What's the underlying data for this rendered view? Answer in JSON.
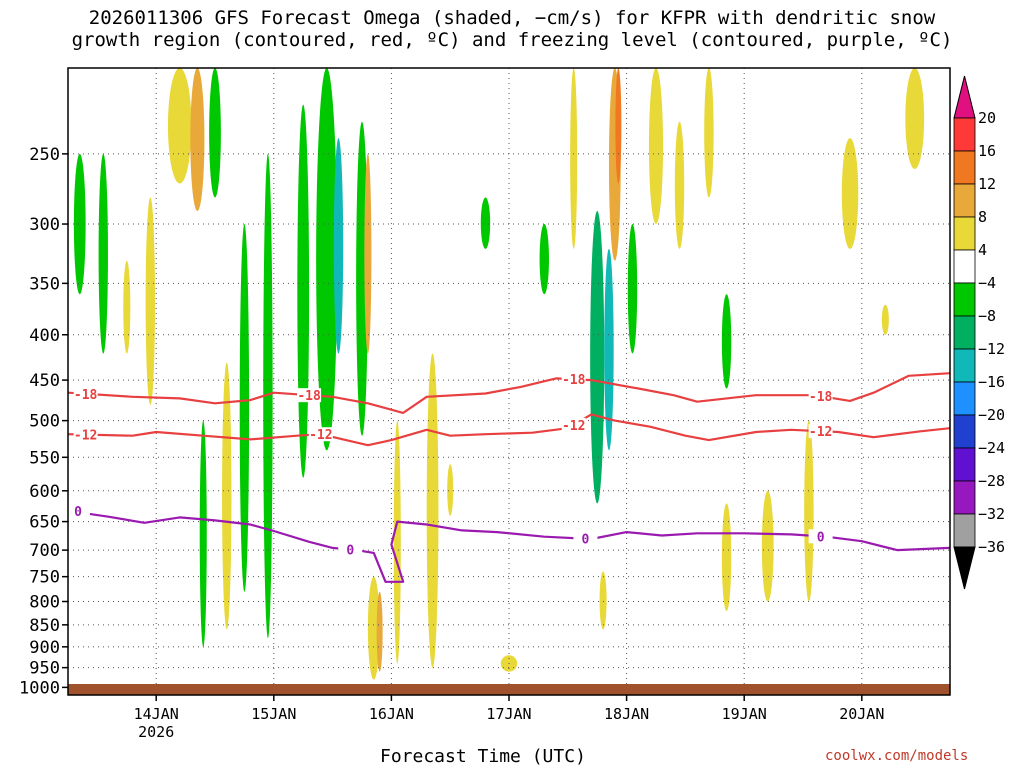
{
  "chart_data": {
    "type": "heatmap",
    "title_line1": "2026011306 GFS Forecast Omega (shaded, −cm/s) for KFPR with dendritic snow",
    "title_line2": "growth region (contoured, red, ºC) and freezing level (contoured, purple, ºC)",
    "xlabel": "Forecast Time (UTC)",
    "credit": "coolwx.com/models",
    "y_ticks": [
      "250",
      "300",
      "350",
      "400",
      "450",
      "500",
      "550",
      "600",
      "650",
      "700",
      "750",
      "800",
      "850",
      "900",
      "950",
      "1000"
    ],
    "y_tick_values": [
      250,
      300,
      350,
      400,
      450,
      500,
      550,
      600,
      650,
      700,
      750,
      800,
      850,
      900,
      950,
      1000
    ],
    "x_ticks": [
      "14JAN",
      "15JAN",
      "16JAN",
      "17JAN",
      "18JAN",
      "19JAN",
      "20JAN"
    ],
    "x_tick_day": [
      14,
      15,
      16,
      17,
      18,
      19,
      20
    ],
    "x_sublabel": "2026",
    "x_range_day": [
      13.25,
      20.75
    ],
    "y_range_hpa": [
      200,
      1020
    ],
    "colorbar": {
      "labels": [
        "20",
        "16",
        "12",
        "8",
        "4",
        "−4",
        "−8",
        "−12",
        "−16",
        "−20",
        "−24",
        "−28",
        "−32",
        "−36"
      ],
      "colors": [
        "#ff3838",
        "#f07820",
        "#e8a93a",
        "#e8d838",
        "#ffffff",
        "#00c800",
        "#00b060",
        "#10b8b8",
        "#1e90ff",
        "#2040d0",
        "#6010d0",
        "#9818c0",
        "#a0a0a0"
      ],
      "top_arrow_color": "#e01080",
      "bottom_arrow_color": "#000000"
    },
    "contours": {
      "dgz_minus18": {
        "label": "-18",
        "color": "#e84040",
        "points": [
          [
            13.25,
            465
          ],
          [
            13.8,
            470
          ],
          [
            14.2,
            472
          ],
          [
            14.5,
            478
          ],
          [
            14.8,
            474
          ],
          [
            15.0,
            465
          ],
          [
            15.5,
            470
          ],
          [
            15.8,
            478
          ],
          [
            16.1,
            490
          ],
          [
            16.3,
            470
          ],
          [
            16.8,
            466
          ],
          [
            17.1,
            458
          ],
          [
            17.4,
            448
          ],
          [
            17.7,
            450
          ],
          [
            18.1,
            460
          ],
          [
            18.4,
            468
          ],
          [
            18.6,
            476
          ],
          [
            19.1,
            468
          ],
          [
            19.6,
            468
          ],
          [
            19.9,
            475
          ],
          [
            20.1,
            465
          ],
          [
            20.4,
            445
          ],
          [
            20.75,
            442
          ]
        ],
        "label_days": [
          13.4,
          15.3,
          17.55,
          19.65
        ]
      },
      "dgz_minus12": {
        "label": "-12",
        "color": "#e84040",
        "points": [
          [
            13.25,
            518
          ],
          [
            13.8,
            520
          ],
          [
            14.0,
            515
          ],
          [
            14.4,
            520
          ],
          [
            14.8,
            525
          ],
          [
            15.2,
            520
          ],
          [
            15.4,
            518
          ],
          [
            15.8,
            533
          ],
          [
            16.0,
            526
          ],
          [
            16.3,
            512
          ],
          [
            16.5,
            520
          ],
          [
            16.8,
            518
          ],
          [
            17.2,
            516
          ],
          [
            17.5,
            510
          ],
          [
            17.7,
            492
          ],
          [
            17.9,
            500
          ],
          [
            18.2,
            508
          ],
          [
            18.5,
            520
          ],
          [
            18.7,
            526
          ],
          [
            19.1,
            515
          ],
          [
            19.4,
            512
          ],
          [
            19.8,
            515
          ],
          [
            20.1,
            522
          ],
          [
            20.5,
            514
          ],
          [
            20.75,
            510
          ]
        ],
        "label_days": [
          13.4,
          15.4,
          17.55,
          19.65
        ]
      },
      "freezing_0": {
        "label": "0",
        "color": "#9a1ab0",
        "points": [
          [
            13.25,
            632
          ],
          [
            13.6,
            642
          ],
          [
            13.9,
            652
          ],
          [
            14.2,
            643
          ],
          [
            14.5,
            648
          ],
          [
            14.8,
            655
          ],
          [
            15.0,
            666
          ],
          [
            15.3,
            685
          ],
          [
            15.5,
            696
          ],
          [
            15.7,
            700
          ],
          [
            15.85,
            705
          ],
          [
            15.95,
            760
          ],
          [
            16.1,
            760
          ],
          [
            16.0,
            690
          ],
          [
            16.05,
            650
          ],
          [
            16.3,
            655
          ],
          [
            16.6,
            665
          ],
          [
            16.9,
            668
          ],
          [
            17.3,
            676
          ],
          [
            17.7,
            680
          ],
          [
            18.0,
            668
          ],
          [
            18.3,
            674
          ],
          [
            18.6,
            670
          ],
          [
            19.0,
            670
          ],
          [
            19.4,
            672
          ],
          [
            19.7,
            676
          ],
          [
            20.0,
            684
          ],
          [
            20.3,
            700
          ],
          [
            20.75,
            696
          ]
        ],
        "label_days": [
          13.25,
          15.65,
          17.65,
          19.65
        ]
      }
    },
    "omega_blobs": [
      {
        "day": 13.35,
        "p_top": 250,
        "p_bot": 360,
        "w": 0.05,
        "v": -6
      },
      {
        "day": 13.55,
        "p_top": 250,
        "p_bot": 420,
        "w": 0.04,
        "v": -5
      },
      {
        "day": 13.75,
        "p_top": 330,
        "p_bot": 420,
        "w": 0.03,
        "v": 6
      },
      {
        "day": 13.95,
        "p_top": 280,
        "p_bot": 480,
        "w": 0.04,
        "v": 6
      },
      {
        "day": 14.2,
        "p_top": 200,
        "p_bot": 270,
        "w": 0.1,
        "v": 6
      },
      {
        "day": 14.35,
        "p_top": 200,
        "p_bot": 290,
        "w": 0.06,
        "v": 10
      },
      {
        "day": 14.5,
        "p_top": 200,
        "p_bot": 280,
        "w": 0.05,
        "v": -5
      },
      {
        "day": 14.4,
        "p_top": 500,
        "p_bot": 900,
        "w": 0.03,
        "v": -6
      },
      {
        "day": 14.6,
        "p_top": 430,
        "p_bot": 860,
        "w": 0.04,
        "v": 5
      },
      {
        "day": 14.75,
        "p_top": 300,
        "p_bot": 780,
        "w": 0.04,
        "v": -6
      },
      {
        "day": 14.95,
        "p_top": 250,
        "p_bot": 880,
        "w": 0.04,
        "v": -5
      },
      {
        "day": 15.25,
        "p_top": 220,
        "p_bot": 580,
        "w": 0.05,
        "v": -6
      },
      {
        "day": 15.45,
        "p_top": 200,
        "p_bot": 540,
        "w": 0.09,
        "v": -7
      },
      {
        "day": 15.55,
        "p_top": 240,
        "p_bot": 420,
        "w": 0.04,
        "v": -13
      },
      {
        "day": 15.75,
        "p_top": 230,
        "p_bot": 520,
        "w": 0.05,
        "v": -7
      },
      {
        "day": 15.8,
        "p_top": 250,
        "p_bot": 420,
        "w": 0.03,
        "v": 10
      },
      {
        "day": 15.85,
        "p_top": 750,
        "p_bot": 980,
        "w": 0.05,
        "v": 5
      },
      {
        "day": 15.9,
        "p_top": 780,
        "p_bot": 960,
        "w": 0.02,
        "v": 10
      },
      {
        "day": 16.05,
        "p_top": 500,
        "p_bot": 940,
        "w": 0.03,
        "v": 5
      },
      {
        "day": 16.35,
        "p_top": 420,
        "p_bot": 950,
        "w": 0.05,
        "v": 5
      },
      {
        "day": 16.5,
        "p_top": 560,
        "p_bot": 640,
        "w": 0.02,
        "v": 5
      },
      {
        "day": 16.8,
        "p_top": 280,
        "p_bot": 320,
        "w": 0.04,
        "v": -5
      },
      {
        "day": 17.0,
        "p_top": 920,
        "p_bot": 960,
        "w": 0.07,
        "v": 5
      },
      {
        "day": 17.3,
        "p_top": 300,
        "p_bot": 360,
        "w": 0.04,
        "v": -5
      },
      {
        "day": 17.55,
        "p_top": 200,
        "p_bot": 320,
        "w": 0.03,
        "v": 5
      },
      {
        "day": 17.75,
        "p_top": 290,
        "p_bot": 620,
        "w": 0.06,
        "v": -9
      },
      {
        "day": 17.85,
        "p_top": 320,
        "p_bot": 540,
        "w": 0.04,
        "v": -13
      },
      {
        "day": 17.9,
        "p_top": 200,
        "p_bot": 330,
        "w": 0.05,
        "v": 8
      },
      {
        "day": 17.93,
        "p_top": 200,
        "p_bot": 270,
        "w": 0.025,
        "v": 13
      },
      {
        "day": 17.8,
        "p_top": 740,
        "p_bot": 860,
        "w": 0.03,
        "v": 6
      },
      {
        "day": 18.05,
        "p_top": 300,
        "p_bot": 420,
        "w": 0.04,
        "v": -5
      },
      {
        "day": 18.25,
        "p_top": 200,
        "p_bot": 300,
        "w": 0.06,
        "v": 5
      },
      {
        "day": 18.45,
        "p_top": 230,
        "p_bot": 320,
        "w": 0.04,
        "v": 7
      },
      {
        "day": 18.7,
        "p_top": 200,
        "p_bot": 280,
        "w": 0.04,
        "v": 6
      },
      {
        "day": 18.85,
        "p_top": 360,
        "p_bot": 460,
        "w": 0.04,
        "v": -7
      },
      {
        "day": 18.85,
        "p_top": 620,
        "p_bot": 820,
        "w": 0.04,
        "v": 5
      },
      {
        "day": 19.2,
        "p_top": 600,
        "p_bot": 800,
        "w": 0.05,
        "v": 5
      },
      {
        "day": 19.55,
        "p_top": 500,
        "p_bot": 800,
        "w": 0.04,
        "v": 5
      },
      {
        "day": 19.9,
        "p_top": 240,
        "p_bot": 320,
        "w": 0.07,
        "v": 6
      },
      {
        "day": 20.2,
        "p_top": 370,
        "p_bot": 400,
        "w": 0.03,
        "v": 5
      },
      {
        "day": 20.45,
        "p_top": 200,
        "p_bot": 260,
        "w": 0.08,
        "v": 5
      }
    ]
  }
}
